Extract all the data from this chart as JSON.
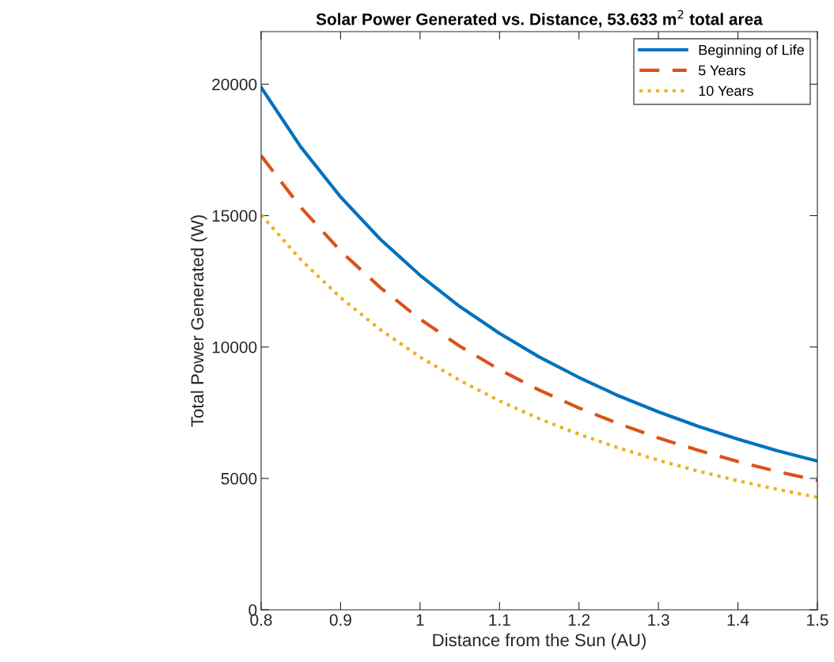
{
  "chart_data": {
    "type": "line",
    "title": "Solar Power Generated vs. Distance, 53.633 m$^{2}$ total area",
    "xlabel": "Distance from the Sun (AU)",
    "ylabel": "Total Power Generated (W)",
    "x": [
      0.8,
      0.85,
      0.9,
      0.95,
      1.0,
      1.05,
      1.1,
      1.15,
      1.2,
      1.25,
      1.3,
      1.35,
      1.4,
      1.45,
      1.5
    ],
    "series": [
      {
        "name": "Beginning of Life",
        "color": "#0072bd",
        "line_style": "solid",
        "values": [
          19880,
          17610,
          15710,
          14100,
          12730,
          11540,
          10520,
          9620,
          8840,
          8140,
          7530,
          6980,
          6490,
          6050,
          5660
        ]
      },
      {
        "name": "5 Years",
        "color": "#d95319",
        "line_style": "dashed",
        "values": [
          17280,
          15310,
          13650,
          12260,
          11060,
          10030,
          9140,
          8360,
          7680,
          7080,
          6540,
          6070,
          5640,
          5260,
          4920
        ]
      },
      {
        "name": "10 Years",
        "color": "#edb120",
        "line_style": "dotted",
        "values": [
          15030,
          13320,
          11880,
          10660,
          9620,
          8730,
          7950,
          7270,
          6680,
          6160,
          5690,
          5280,
          4910,
          4580,
          4280
        ]
      }
    ],
    "xlim": [
      0.8,
      1.5
    ],
    "xticks": [
      0.8,
      0.9,
      1,
      1.1,
      1.2,
      1.3,
      1.4,
      1.5
    ],
    "ylim": [
      0,
      22000
    ],
    "yticks": [
      0,
      5000,
      10000,
      15000,
      20000
    ],
    "grid": false,
    "legend": "top right",
    "marker": "none"
  }
}
